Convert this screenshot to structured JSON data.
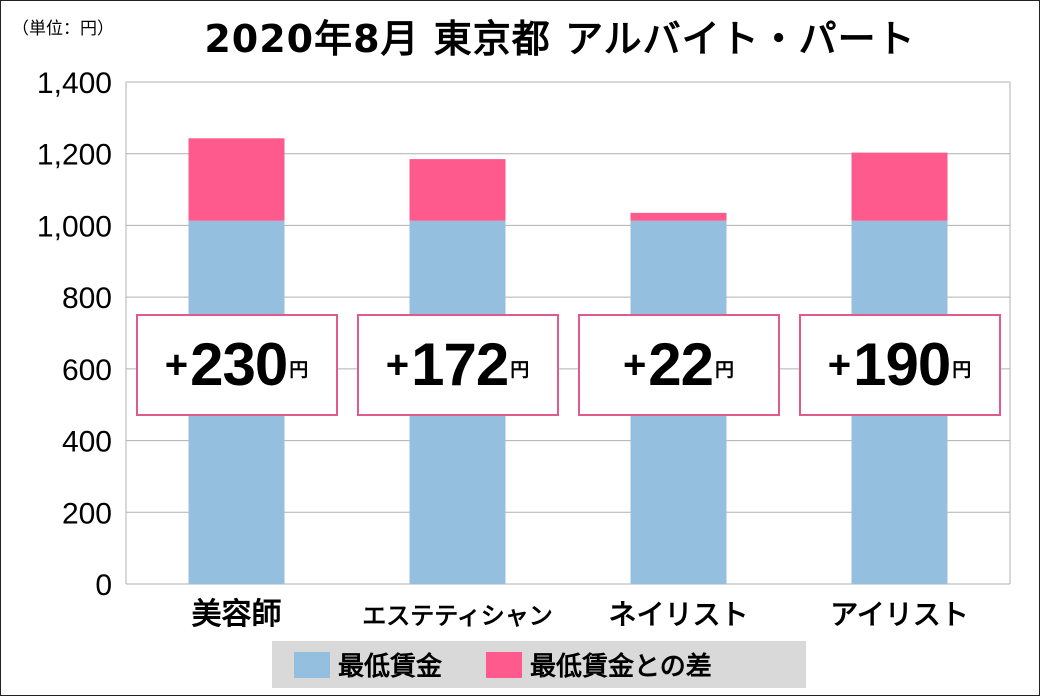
{
  "header": {
    "unit_label": "（単位：円）",
    "title": "2020年8月 東京都 アルバイト・パート"
  },
  "colors": {
    "min_wage": "#94bfdf",
    "diff": "#ff5a8d",
    "callout_border": "#e05a8e",
    "grid": "#b0b0b0",
    "legend_bg": "#d9d9d9"
  },
  "chart_data": {
    "type": "bar",
    "stacked": true,
    "title": "2020年8月 東京都 アルバイト・パート",
    "ylabel": "（単位：円）",
    "ylim": [
      0,
      1400
    ],
    "yticks": [
      0,
      200,
      400,
      600,
      800,
      1000,
      1200,
      1400
    ],
    "ytick_labels": [
      "0",
      "200",
      "400",
      "600",
      "800",
      "1,000",
      "1,200",
      "1,400"
    ],
    "grid": true,
    "legend_position": "bottom",
    "categories": [
      "美容師",
      "エステティシャン",
      "ネイリスト",
      "アイリスト"
    ],
    "series": [
      {
        "name": "最低賃金",
        "values": [
          1013,
          1013,
          1013,
          1013
        ]
      },
      {
        "name": "最低賃金との差",
        "values": [
          230,
          172,
          22,
          190
        ]
      }
    ],
    "annotations": [
      {
        "plus": "+",
        "value": "230",
        "unit": "円"
      },
      {
        "plus": "+",
        "value": "172",
        "unit": "円"
      },
      {
        "plus": "+",
        "value": "22",
        "unit": "円"
      },
      {
        "plus": "+",
        "value": "190",
        "unit": "円"
      }
    ]
  }
}
